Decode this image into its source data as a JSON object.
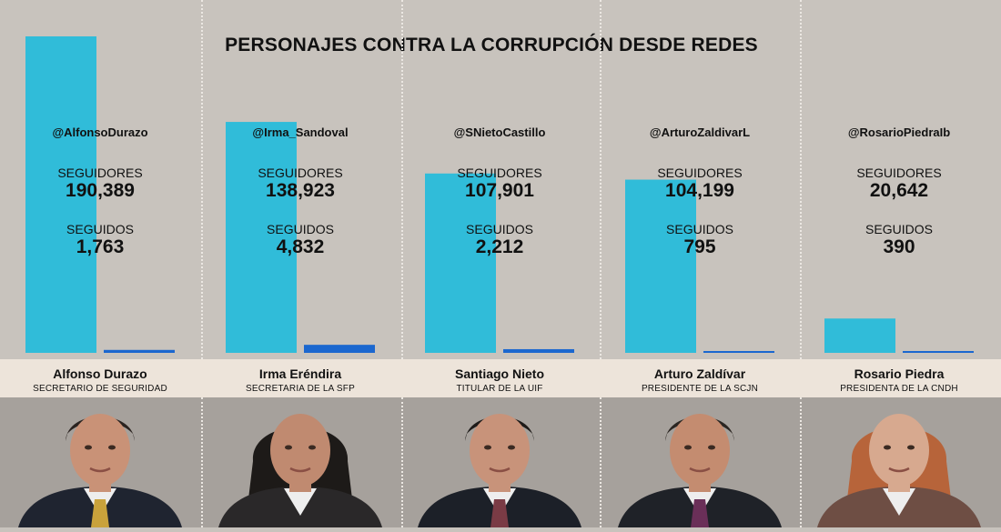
{
  "title": "PERSONAJES CONTRA LA CORRUPCIÓN DESDE REDES",
  "colors": {
    "seguidores": "#30bcd9",
    "seguidos": "#1b67cf",
    "background": "#c8c3bd",
    "name_band": "#ede4da"
  },
  "chart_data": {
    "type": "bar",
    "title": "PERSONAJES CONTRA LA CORRUPCIÓN DESDE REDES",
    "categories": [
      "Alfonso Durazo",
      "Irma Eréndira",
      "Santiago Nieto",
      "Arturo Zaldívar",
      "Rosario Piedra"
    ],
    "series": [
      {
        "name": "SEGUIDORES",
        "values": [
          190389,
          138923,
          107901,
          104199,
          20642
        ]
      },
      {
        "name": "SEGUIDOS",
        "values": [
          1763,
          4832,
          2212,
          795,
          390
        ]
      }
    ],
    "ylim": [
      0,
      190389
    ],
    "grid": false,
    "legend": "none"
  },
  "columns": [
    {
      "handle": "@AlfonsoDurazo",
      "seguidores_label": "SEGUIDORES",
      "seguidores_value": "190,389",
      "seguidos_label": "SEGUIDOS",
      "seguidos_value": "1,763",
      "name": "Alfonso Durazo",
      "role": "SECRETARIO DE SEGURIDAD",
      "gender": "m"
    },
    {
      "handle": "@Irma_Sandoval",
      "seguidores_label": "SEGUIDORES",
      "seguidores_value": "138,923",
      "seguidos_label": "SEGUIDOS",
      "seguidos_value": "4,832",
      "name": "Irma Eréndira",
      "role": "SECRETARIA DE LA SFP",
      "gender": "f"
    },
    {
      "handle": "@SNietoCastillo",
      "seguidores_label": "SEGUIDORES",
      "seguidores_value": "107,901",
      "seguidos_label": "SEGUIDOS",
      "seguidos_value": "2,212",
      "name": "Santiago Nieto",
      "role": "TITULAR DE LA UIF",
      "gender": "m"
    },
    {
      "handle": "@ArturoZaldivarL",
      "seguidores_label": "SEGUIDORES",
      "seguidores_value": "104,199",
      "seguidos_label": "SEGUIDOS",
      "seguidos_value": "795",
      "name": "Arturo Zaldívar",
      "role": "PRESIDENTE DE LA SCJN",
      "gender": "m"
    },
    {
      "handle": "@RosarioPiedraIb",
      "seguidores_label": "SEGUIDORES",
      "seguidores_value": "20,642",
      "seguidos_label": "SEGUIDOS",
      "seguidos_value": "390",
      "name": "Rosario Piedra",
      "role": "PRESIDENTA DE LA CNDH",
      "gender": "f"
    }
  ]
}
